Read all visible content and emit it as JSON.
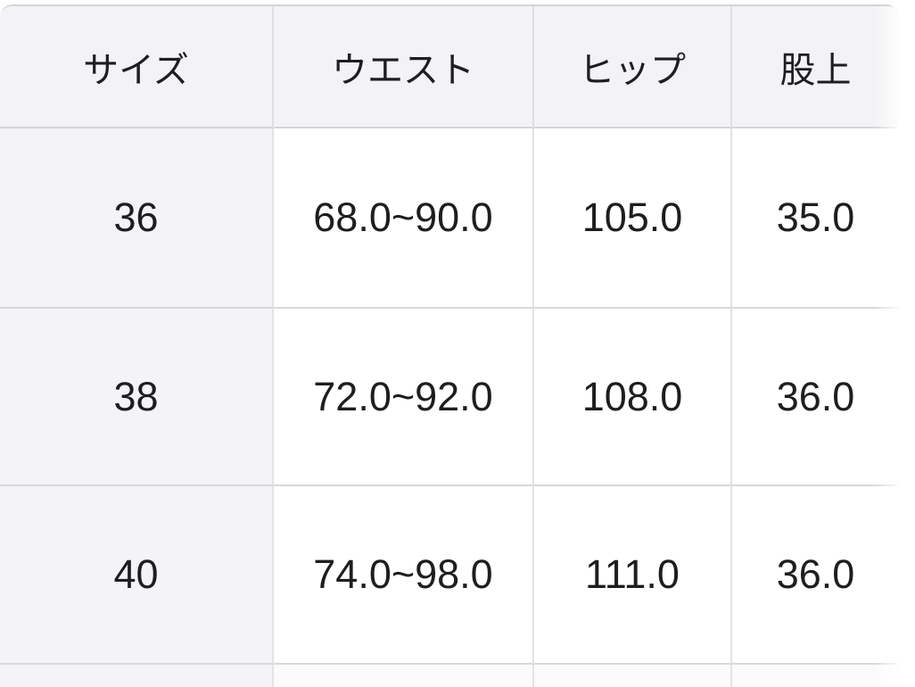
{
  "page": {
    "background_color": "#ffffff"
  },
  "size_chart": {
    "columns": {
      "size": "サイズ",
      "waist": "ウエスト",
      "hip": "ヒップ",
      "rise": "股上"
    },
    "rows": [
      {
        "size": "36",
        "waist": "68.0~90.0",
        "hip": "105.0",
        "rise": "35.0"
      },
      {
        "size": "38",
        "waist": "72.0~92.0",
        "hip": "108.0",
        "rise": "36.0"
      },
      {
        "size": "40",
        "waist": "74.0~98.0",
        "hip": "111.0",
        "rise": "36.0"
      }
    ],
    "colors": {
      "header_background": "#f3f3f5",
      "row_label_background": "#f4f4f6",
      "cell_background": "#ffffff",
      "horizontal_border": "#d6d9dc",
      "vertical_border": "#e1e3e6",
      "text": "#1e1e20"
    }
  }
}
